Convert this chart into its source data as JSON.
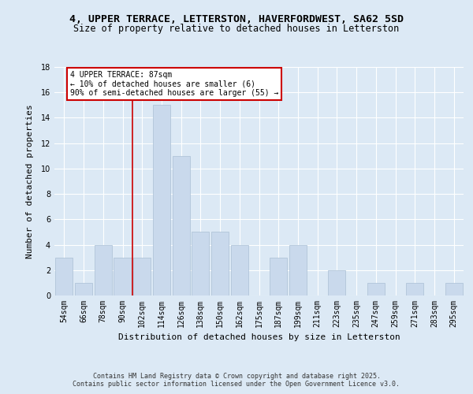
{
  "title": "4, UPPER TERRACE, LETTERSTON, HAVERFORDWEST, SA62 5SD",
  "subtitle": "Size of property relative to detached houses in Letterston",
  "xlabel": "Distribution of detached houses by size in Letterston",
  "ylabel": "Number of detached properties",
  "categories": [
    "54sqm",
    "66sqm",
    "78sqm",
    "90sqm",
    "102sqm",
    "114sqm",
    "126sqm",
    "138sqm",
    "150sqm",
    "162sqm",
    "175sqm",
    "187sqm",
    "199sqm",
    "211sqm",
    "223sqm",
    "235sqm",
    "247sqm",
    "259sqm",
    "271sqm",
    "283sqm",
    "295sqm"
  ],
  "values": [
    3,
    1,
    4,
    3,
    3,
    15,
    11,
    5,
    5,
    4,
    0,
    3,
    4,
    0,
    2,
    0,
    1,
    0,
    1,
    0,
    1
  ],
  "bar_color": "#c9d9ec",
  "bar_edge_color": "#aabfd4",
  "annotation_line_color": "#cc0000",
  "annotation_box_color": "#ffffff",
  "annotation_box_edge_color": "#cc0000",
  "annotation_text_line1": "4 UPPER TERRACE: 87sqm",
  "annotation_text_line2": "← 10% of detached houses are smaller (6)",
  "annotation_text_line3": "90% of semi-detached houses are larger (55) →",
  "ylim": [
    0,
    18
  ],
  "yticks": [
    0,
    2,
    4,
    6,
    8,
    10,
    12,
    14,
    16,
    18
  ],
  "background_color": "#dce9f5",
  "plot_bg_color": "#dce9f5",
  "footer_text": "Contains HM Land Registry data © Crown copyright and database right 2025.\nContains public sector information licensed under the Open Government Licence v3.0.",
  "title_fontsize": 9.5,
  "subtitle_fontsize": 8.5,
  "xlabel_fontsize": 8,
  "ylabel_fontsize": 8,
  "tick_fontsize": 7,
  "annotation_fontsize": 7,
  "footer_fontsize": 6
}
